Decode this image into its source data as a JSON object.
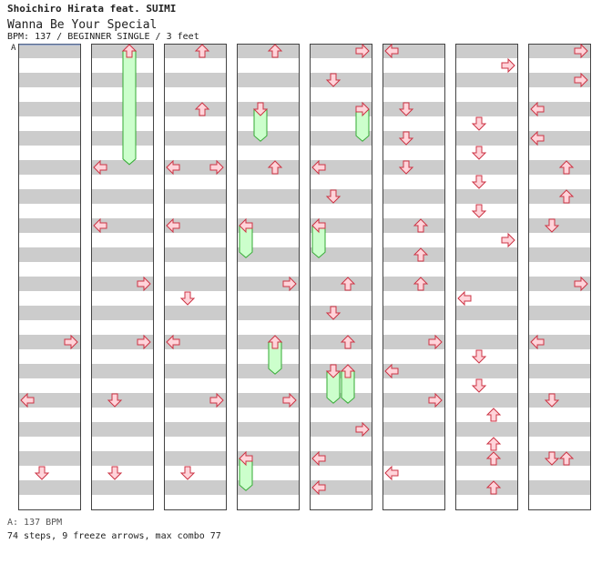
{
  "header": {
    "artist": "Shoichiro Hirata feat. SUIMI",
    "title": "Wanna Be Your Special",
    "info": "BPM: 137 / BEGINNER SINGLE / 3 feet",
    "speed_marker": "A"
  },
  "footer": {
    "bpm_line": "A: 137 BPM",
    "stats": "74 steps, 9 freeze arrows, max combo 77"
  },
  "colors": {
    "arrow_fill": "#ffd4da",
    "arrow_stroke": "#cc3344",
    "freeze_fill": "#ccffcc",
    "freeze_stroke": "#33aa33",
    "band": "#cccccc"
  },
  "chart_data": {
    "type": "step-chart",
    "columns": 8,
    "measures_per_column": 8,
    "lane_order": [
      "left",
      "down",
      "up",
      "right"
    ],
    "notes": [
      {
        "col": 0,
        "pos": 6.0,
        "lane": "right"
      },
      {
        "col": 0,
        "pos": 7.0,
        "lane": "left"
      },
      {
        "col": 0,
        "pos": 8.25,
        "lane": "down"
      },
      {
        "col": 1,
        "pos": 1.0,
        "lane": "up",
        "hold": 1.95
      },
      {
        "col": 1,
        "pos": 3.0,
        "lane": "left"
      },
      {
        "col": 1,
        "pos": 4.0,
        "lane": "left"
      },
      {
        "col": 1,
        "pos": 5.0,
        "lane": "right"
      },
      {
        "col": 1,
        "pos": 6.0,
        "lane": "right"
      },
      {
        "col": 1,
        "pos": 7.0,
        "lane": "down"
      },
      {
        "col": 1,
        "pos": 8.25,
        "lane": "down"
      },
      {
        "col": 2,
        "pos": 1.0,
        "lane": "up"
      },
      {
        "col": 2,
        "pos": 2.0,
        "lane": "up"
      },
      {
        "col": 2,
        "pos": 3.0,
        "lane": "left"
      },
      {
        "col": 2,
        "pos": 3.0,
        "lane": "right"
      },
      {
        "col": 2,
        "pos": 4.0,
        "lane": "left"
      },
      {
        "col": 2,
        "pos": 5.25,
        "lane": "down"
      },
      {
        "col": 2,
        "pos": 6.0,
        "lane": "left"
      },
      {
        "col": 2,
        "pos": 7.0,
        "lane": "right"
      },
      {
        "col": 2,
        "pos": 8.25,
        "lane": "down"
      },
      {
        "col": 3,
        "pos": 1.0,
        "lane": "up"
      },
      {
        "col": 3,
        "pos": 2.0,
        "lane": "down",
        "hold": 0.55
      },
      {
        "col": 3,
        "pos": 3.0,
        "lane": "up"
      },
      {
        "col": 3,
        "pos": 4.0,
        "lane": "left",
        "hold": 0.55
      },
      {
        "col": 3,
        "pos": 5.0,
        "lane": "right"
      },
      {
        "col": 3,
        "pos": 6.0,
        "lane": "up",
        "hold": 0.55
      },
      {
        "col": 3,
        "pos": 7.0,
        "lane": "right"
      },
      {
        "col": 3,
        "pos": 8.0,
        "lane": "left",
        "hold": 0.55
      },
      {
        "col": 4,
        "pos": 1.0,
        "lane": "right"
      },
      {
        "col": 4,
        "pos": 1.5,
        "lane": "down"
      },
      {
        "col": 4,
        "pos": 2.0,
        "lane": "right",
        "hold": 0.55
      },
      {
        "col": 4,
        "pos": 3.0,
        "lane": "left"
      },
      {
        "col": 4,
        "pos": 3.5,
        "lane": "down"
      },
      {
        "col": 4,
        "pos": 4.0,
        "lane": "left",
        "hold": 0.55
      },
      {
        "col": 4,
        "pos": 5.0,
        "lane": "up"
      },
      {
        "col": 4,
        "pos": 5.5,
        "lane": "down"
      },
      {
        "col": 4,
        "pos": 6.0,
        "lane": "up"
      },
      {
        "col": 4,
        "pos": 6.5,
        "lane": "down",
        "hold": 0.55
      },
      {
        "col": 4,
        "pos": 6.5,
        "lane": "up",
        "hold": 0.55
      },
      {
        "col": 4,
        "pos": 7.5,
        "lane": "right"
      },
      {
        "col": 4,
        "pos": 8.0,
        "lane": "left"
      },
      {
        "col": 4,
        "pos": 8.5,
        "lane": "left"
      },
      {
        "col": 5,
        "pos": 1.0,
        "lane": "left"
      },
      {
        "col": 5,
        "pos": 2.0,
        "lane": "down"
      },
      {
        "col": 5,
        "pos": 2.5,
        "lane": "down"
      },
      {
        "col": 5,
        "pos": 3.0,
        "lane": "down"
      },
      {
        "col": 5,
        "pos": 4.0,
        "lane": "up"
      },
      {
        "col": 5,
        "pos": 4.5,
        "lane": "up"
      },
      {
        "col": 5,
        "pos": 5.0,
        "lane": "up"
      },
      {
        "col": 5,
        "pos": 6.0,
        "lane": "right"
      },
      {
        "col": 5,
        "pos": 6.5,
        "lane": "left"
      },
      {
        "col": 5,
        "pos": 7.0,
        "lane": "right"
      },
      {
        "col": 5,
        "pos": 8.25,
        "lane": "left"
      },
      {
        "col": 6,
        "pos": 1.25,
        "lane": "right"
      },
      {
        "col": 6,
        "pos": 2.25,
        "lane": "down"
      },
      {
        "col": 6,
        "pos": 2.75,
        "lane": "down"
      },
      {
        "col": 6,
        "pos": 3.25,
        "lane": "down"
      },
      {
        "col": 6,
        "pos": 3.75,
        "lane": "down"
      },
      {
        "col": 6,
        "pos": 4.25,
        "lane": "right"
      },
      {
        "col": 6,
        "pos": 5.25,
        "lane": "left"
      },
      {
        "col": 6,
        "pos": 6.25,
        "lane": "down"
      },
      {
        "col": 6,
        "pos": 6.75,
        "lane": "down"
      },
      {
        "col": 6,
        "pos": 7.25,
        "lane": "up"
      },
      {
        "col": 6,
        "pos": 7.75,
        "lane": "up"
      },
      {
        "col": 6,
        "pos": 8.0,
        "lane": "up"
      },
      {
        "col": 6,
        "pos": 8.5,
        "lane": "up"
      },
      {
        "col": 7,
        "pos": 1.0,
        "lane": "right"
      },
      {
        "col": 7,
        "pos": 1.5,
        "lane": "right"
      },
      {
        "col": 7,
        "pos": 2.0,
        "lane": "left"
      },
      {
        "col": 7,
        "pos": 2.5,
        "lane": "left"
      },
      {
        "col": 7,
        "pos": 3.0,
        "lane": "up"
      },
      {
        "col": 7,
        "pos": 3.5,
        "lane": "up"
      },
      {
        "col": 7,
        "pos": 4.0,
        "lane": "down"
      },
      {
        "col": 7,
        "pos": 5.0,
        "lane": "right"
      },
      {
        "col": 7,
        "pos": 6.0,
        "lane": "left"
      },
      {
        "col": 7,
        "pos": 7.0,
        "lane": "down"
      },
      {
        "col": 7,
        "pos": 8.0,
        "lane": "down"
      },
      {
        "col": 7,
        "pos": 8.0,
        "lane": "up"
      }
    ]
  }
}
